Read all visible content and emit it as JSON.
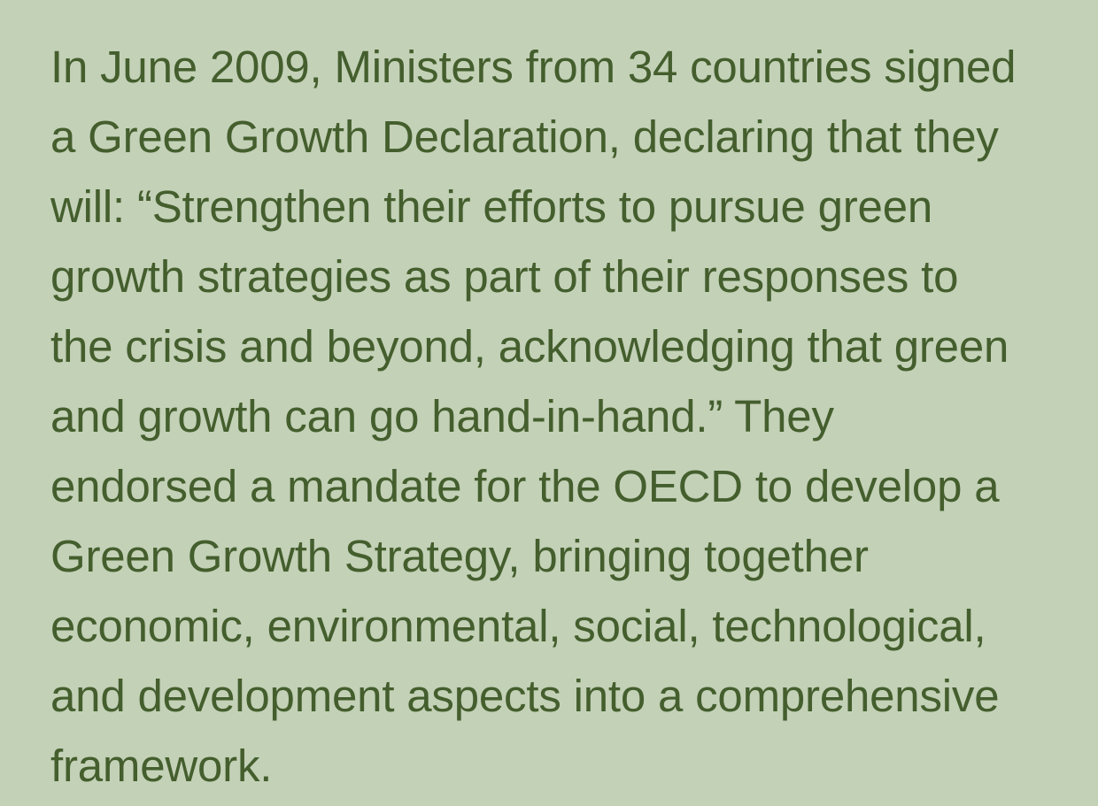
{
  "paragraph": {
    "lines": [
      "In June 2009, Ministers from 34 countries signed",
      "a Green Growth Declaration, declaring that they",
      "will: “Strengthen their efforts to pursue green",
      "growth strategies as part of their responses to",
      "the crisis and beyond, acknowledging that green",
      "and growth can go hand-in-hand.” They",
      "endorsed a mandate for the OECD to develop a",
      "Green Growth Strategy, bringing together",
      "economic, environmental, social, technological,",
      "and development aspects into a comprehensive",
      "framework."
    ]
  },
  "colors": {
    "background": "#c3d1b7",
    "text": "#445e2d"
  }
}
